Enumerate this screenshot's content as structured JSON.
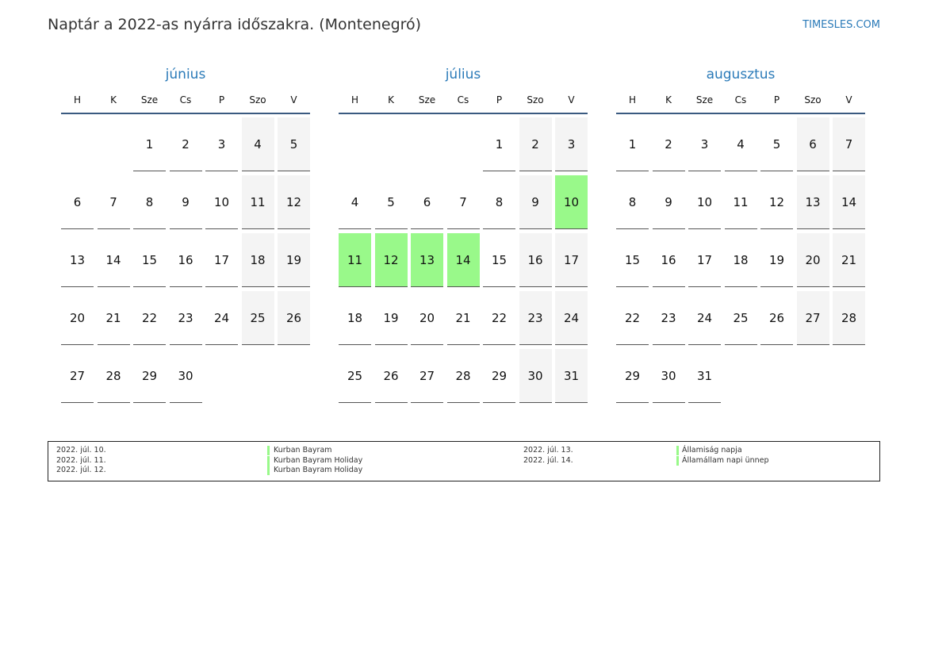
{
  "header": {
    "title": "Naptár a 2022-as nyárra időszakra. (Montenegró)",
    "brand": "TIMESLES.COM"
  },
  "colors": {
    "accent": "#2a7ab8",
    "holiday": "#99f98a",
    "weekend": "#f4f4f4"
  },
  "day_names": [
    "H",
    "K",
    "Sze",
    "Cs",
    "P",
    "Szo",
    "V"
  ],
  "months": [
    {
      "name": "június",
      "offset": 2,
      "days": 30,
      "holidays": []
    },
    {
      "name": "július",
      "offset": 4,
      "days": 31,
      "holidays": [
        10,
        11,
        12,
        13,
        14
      ]
    },
    {
      "name": "augusztus",
      "offset": 0,
      "days": 31,
      "holidays": []
    }
  ],
  "legend": [
    {
      "date": "2022. júl. 10.",
      "name": "Kurban Bayram"
    },
    {
      "date": "2022. júl. 11.",
      "name": "Kurban Bayram Holiday"
    },
    {
      "date": "2022. júl. 12.",
      "name": "Kurban Bayram Holiday"
    },
    {
      "date": "2022. júl. 13.",
      "name": "Államiság napja"
    },
    {
      "date": "2022. júl. 14.",
      "name": "Államállam napi ünnep"
    }
  ]
}
